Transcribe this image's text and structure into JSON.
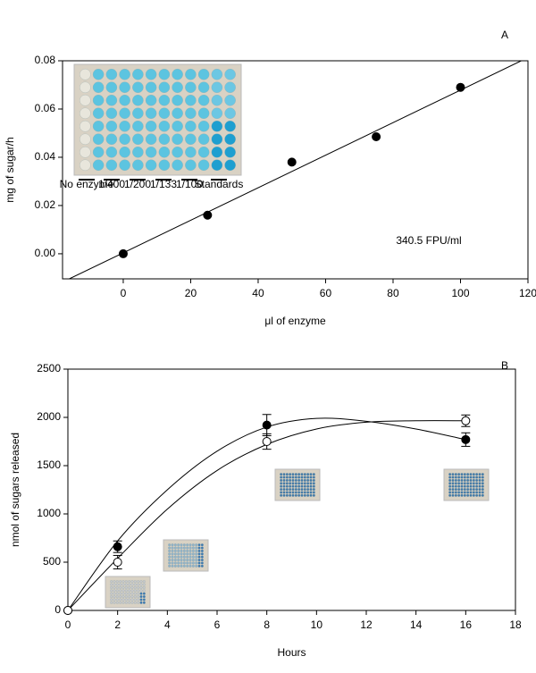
{
  "chart_data": [
    {
      "type": "scatter",
      "panel_label": "A",
      "x_label": "μl of enzyme",
      "y_label": "mg of sugar/h",
      "annotation": "340.5 FPU/ml",
      "inset_labels": [
        "No enzyme",
        "1/400",
        "1/200",
        "1/133",
        "1/100",
        "Standards"
      ],
      "x": [
        0,
        25,
        50,
        75,
        100
      ],
      "series": [
        {
          "color": "#000000",
          "marker_fill": "#000000",
          "values": [
            0,
            0.016,
            0.038,
            0.0485,
            0.069
          ]
        }
      ],
      "fit": {
        "x": [
          -16,
          118
        ],
        "y": [
          -0.0104,
          0.08
        ]
      },
      "xlim": [
        -18,
        120
      ],
      "ylim": [
        -0.0104,
        0.08
      ],
      "xticks": [
        0,
        20,
        40,
        60,
        80,
        100,
        120
      ],
      "yticks": [
        {
          "value": 0,
          "label": "0.00"
        },
        0.02,
        0.04,
        0.06,
        0.08
      ]
    },
    {
      "type": "scatter",
      "panel_label": "B",
      "x_label": "Hours",
      "y_label": "nmol of sugars released",
      "x": [
        0,
        2,
        8,
        16
      ],
      "series": [
        {
          "color": "#000000",
          "marker_fill": "#000000",
          "values": [
            0,
            660,
            1920,
            1770
          ],
          "errors": [
            null,
            60,
            110,
            70
          ],
          "curve": {
            "x": [
              0,
              2,
              4,
              6,
              8,
              10,
              12,
              14,
              16
            ],
            "y": [
              0,
              720,
              1250,
              1650,
              1900,
              1990,
              1960,
              1880,
              1770
            ]
          }
        },
        {
          "color": "#000000",
          "marker_fill": "#ffffff",
          "values": [
            0,
            500,
            1750,
            1965
          ],
          "errors": [
            null,
            70,
            80,
            60
          ],
          "curve": {
            "x": [
              0,
              2,
              4,
              6,
              8,
              10,
              12,
              14,
              16
            ],
            "y": [
              0,
              540,
              1050,
              1450,
              1720,
              1880,
              1950,
              1965,
              1965
            ]
          }
        }
      ],
      "xlim": [
        0,
        18
      ],
      "ylim": [
        0,
        2500
      ],
      "xticks": [
        0,
        2,
        4,
        6,
        8,
        10,
        12,
        14,
        16,
        18
      ],
      "yticks": [
        0,
        500,
        1000,
        1500,
        2000,
        2500
      ]
    }
  ]
}
